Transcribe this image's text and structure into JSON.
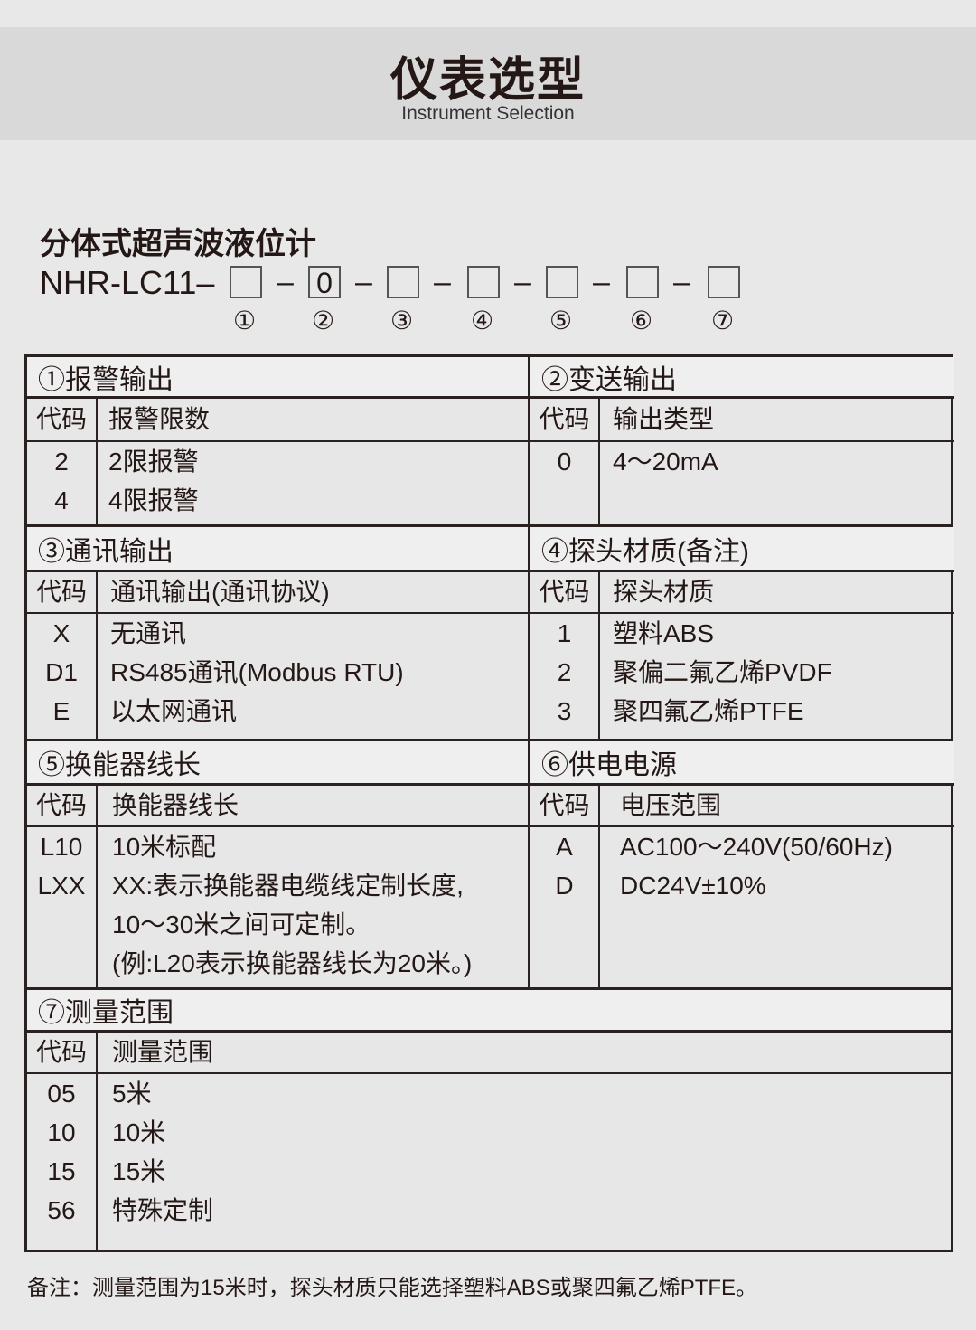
{
  "header": {
    "title": "仪表选型",
    "subtitle": "Instrument Selection"
  },
  "product": {
    "name": "分体式超声波液位计",
    "model_prefix": "NHR-LC11–",
    "slots": [
      "",
      "0",
      "",
      "",
      "",
      "",
      ""
    ],
    "separator": "–",
    "slot_numbers": [
      "①",
      "②",
      "③",
      "④",
      "⑤",
      "⑥",
      "⑦"
    ]
  },
  "sections": [
    {
      "title": "①报警输出",
      "code_header": "代码",
      "desc_header": "报警限数",
      "rows": [
        {
          "code": "2",
          "desc": [
            "2限报警"
          ]
        },
        {
          "code": "4",
          "desc": [
            "4限报警"
          ]
        }
      ]
    },
    {
      "title": "②变送输出",
      "code_header": "代码",
      "desc_header": "输出类型",
      "rows": [
        {
          "code": "0",
          "desc": [
            "4～20mA"
          ]
        }
      ]
    },
    {
      "title": "③通讯输出",
      "code_header": "代码",
      "desc_header": "通讯输出(通讯协议)",
      "rows": [
        {
          "code": "X",
          "desc": [
            "无通讯"
          ]
        },
        {
          "code": "D1",
          "desc": [
            "RS485通讯(Modbus RTU)"
          ]
        },
        {
          "code": "E",
          "desc": [
            "以太网通讯"
          ]
        }
      ]
    },
    {
      "title": "④探头材质(备注)",
      "code_header": "代码",
      "desc_header": "探头材质",
      "rows": [
        {
          "code": "1",
          "desc": [
            "塑料ABS"
          ]
        },
        {
          "code": "2",
          "desc": [
            "聚偏二氟乙烯PVDF"
          ]
        },
        {
          "code": "3",
          "desc": [
            "聚四氟乙烯PTFE"
          ]
        }
      ]
    },
    {
      "title": "⑤换能器线长",
      "code_header": "代码",
      "desc_header": "换能器线长",
      "rows": [
        {
          "code": "L10",
          "desc": [
            "10米标配"
          ]
        },
        {
          "code": "LXX",
          "desc": [
            "XX:表示换能器电缆线定制长度,",
            "10～30米之间可定制。",
            "(例:L20表示换能器线长为20米。)"
          ]
        }
      ]
    },
    {
      "title": "⑥供电电源",
      "code_header": "代码",
      "desc_header": "电压范围",
      "rows": [
        {
          "code": "A",
          "desc": [
            "AC100～240V(50/60Hz)"
          ]
        },
        {
          "code": "D",
          "desc": [
            "DC24V±10%"
          ]
        }
      ]
    },
    {
      "title": "⑦测量范围",
      "code_header": "代码",
      "desc_header": "测量范围",
      "rows": [
        {
          "code": "05",
          "desc": [
            "5米"
          ]
        },
        {
          "code": "10",
          "desc": [
            "10米"
          ]
        },
        {
          "code": "15",
          "desc": [
            "15米"
          ]
        },
        {
          "code": "56",
          "desc": [
            "特殊定制"
          ]
        }
      ]
    }
  ],
  "note": "备注：测量范围为15米时，探头材质只能选择塑料ABS或聚四氟乙烯PTFE。"
}
